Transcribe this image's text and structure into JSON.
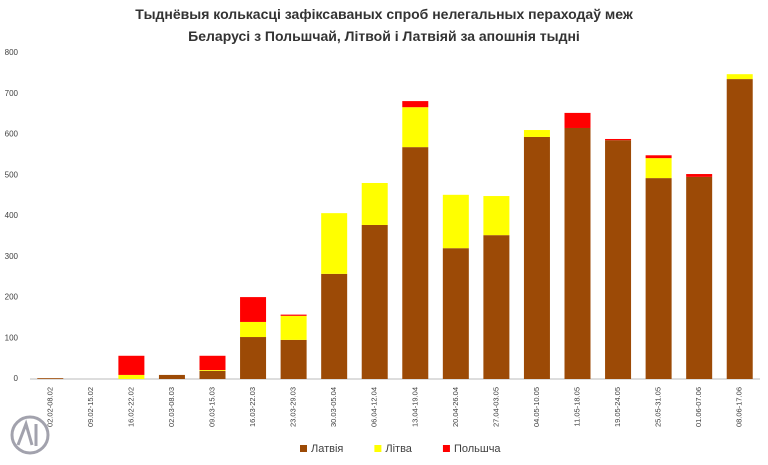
{
  "chart_data": {
    "type": "stacked-bar",
    "title": "Тыднёвыя колькасці зафіксаваных спроб нелегальных пераходаў меж",
    "subtitle": "Беларусі з Польшчай, Літвой і Латвіяй за апошнія тыдні",
    "categories": [
      "02.02-08.02",
      "09.02-15.02",
      "16.02-22.02",
      "02.03-08.03",
      "09.03-15.03",
      "16.03-22.03",
      "23.03-29.03",
      "30.03-05.04",
      "06.04-12.04",
      "13.04-19.04",
      "20.04-26.04",
      "27.04-03.05",
      "04.05-10.05",
      "11.05-18.05",
      "19.05-24.05",
      "25.05-31.05",
      "01.06-07.06",
      "08.06-17.06"
    ],
    "series": [
      {
        "name": "Латвія",
        "color": "#9c4a06",
        "values": [
          2,
          0,
          0,
          10,
          20,
          103,
          96,
          258,
          378,
          569,
          321,
          353,
          594,
          616,
          586,
          493,
          496,
          736
        ]
      },
      {
        "name": "Літва",
        "color": "#ffff00",
        "values": [
          0,
          0,
          10,
          0,
          2,
          37,
          59,
          149,
          103,
          98,
          131,
          96,
          17,
          0,
          0,
          49,
          0,
          12
        ]
      },
      {
        "name": "Польшча",
        "color": "#ff0000",
        "values": [
          0,
          0,
          47,
          0,
          35,
          61,
          3,
          0,
          0,
          15,
          0,
          0,
          0,
          37,
          3,
          7,
          7,
          0
        ]
      }
    ],
    "ylim": [
      0,
      800
    ],
    "yticks": [
      0,
      100,
      200,
      300,
      400,
      500,
      600,
      700,
      800
    ],
    "grid": false
  }
}
